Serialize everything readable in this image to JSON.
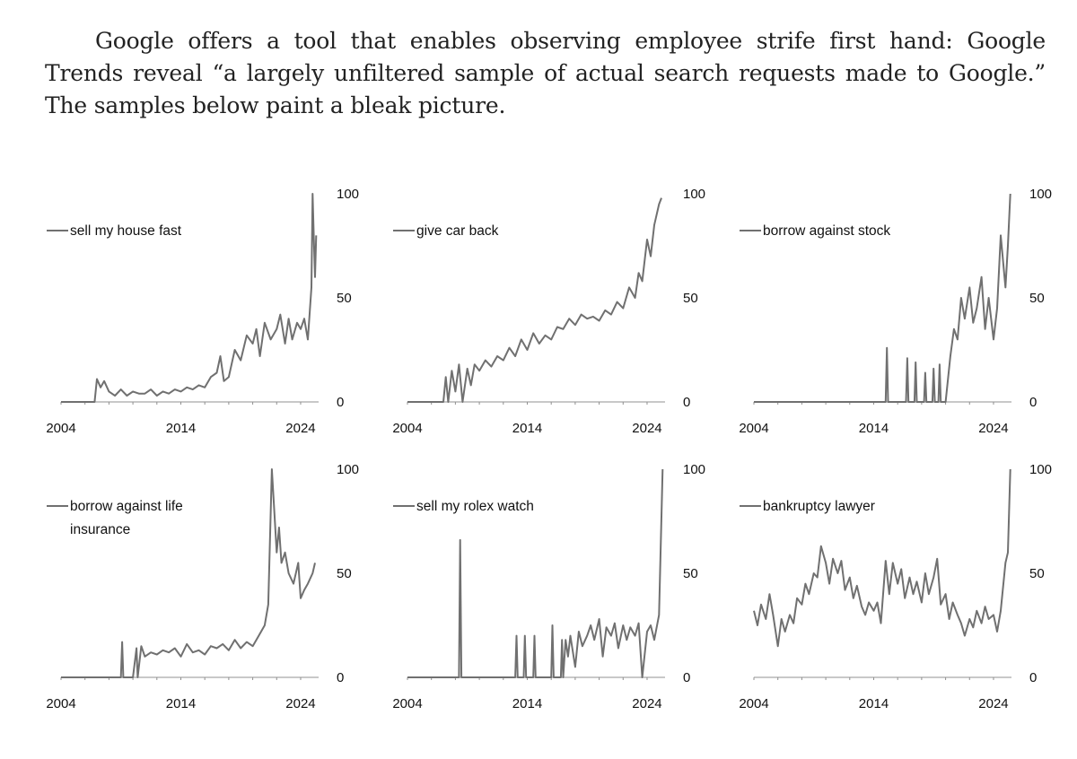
{
  "intro_text": "Google offers a tool that enables observing employee strife first hand: Google Trends reveal “a largely unfiltered sample of actual search requests made to Google.” The samples below paint a bleak picture.",
  "colors": {
    "line": "#707070",
    "axis": "#909090",
    "text": "#111111"
  },
  "chart_data": [
    {
      "type": "line",
      "legend": [
        "sell my house fast"
      ],
      "xticks": [
        "2004",
        "2014",
        "2024"
      ],
      "xlim": [
        2004,
        2025.5
      ],
      "yticks": [
        "100",
        "50",
        "0"
      ],
      "ylim": [
        0,
        100
      ],
      "series": [
        {
          "name": "sell my house fast",
          "x": [
            2004,
            2005,
            2006,
            2006.8,
            2007,
            2007.3,
            2007.6,
            2008,
            2008.5,
            2009,
            2009.5,
            2010,
            2010.5,
            2011,
            2011.5,
            2012,
            2012.5,
            2013,
            2013.5,
            2014,
            2014.5,
            2015,
            2015.5,
            2016,
            2016.5,
            2017,
            2017.3,
            2017.6,
            2018,
            2018.5,
            2019,
            2019.5,
            2020,
            2020.3,
            2020.6,
            2021,
            2021.5,
            2022,
            2022.3,
            2022.7,
            2023,
            2023.3,
            2023.7,
            2024,
            2024.3,
            2024.6,
            2024.9,
            2025.0,
            2025.1,
            2025.2,
            2025.3
          ],
          "y": [
            0,
            0,
            0,
            0,
            11,
            7,
            10,
            5,
            3,
            6,
            3,
            5,
            4,
            4,
            6,
            3,
            5,
            4,
            6,
            5,
            7,
            6,
            8,
            7,
            12,
            14,
            22,
            10,
            12,
            25,
            20,
            32,
            28,
            35,
            22,
            38,
            30,
            35,
            42,
            28,
            40,
            30,
            38,
            35,
            40,
            30,
            55,
            100,
            78,
            60,
            80
          ]
        }
      ]
    },
    {
      "type": "line",
      "legend": [
        "give car back"
      ],
      "xticks": [
        "2004",
        "2014",
        "2024"
      ],
      "xlim": [
        2004,
        2025.5
      ],
      "yticks": [
        "100",
        "50",
        "0"
      ],
      "ylim": [
        0,
        100
      ],
      "series": [
        {
          "name": "give car back",
          "x": [
            2004,
            2005,
            2006,
            2007,
            2007.2,
            2007.4,
            2007.7,
            2008,
            2008.3,
            2008.6,
            2009,
            2009.3,
            2009.6,
            2010,
            2010.5,
            2011,
            2011.5,
            2012,
            2012.5,
            2013,
            2013.5,
            2014,
            2014.5,
            2015,
            2015.5,
            2016,
            2016.5,
            2017,
            2017.5,
            2018,
            2018.5,
            2019,
            2019.5,
            2020,
            2020.5,
            2021,
            2021.5,
            2022,
            2022.5,
            2023,
            2023.3,
            2023.6,
            2024,
            2024.3,
            2024.6,
            2025,
            2025.2
          ],
          "y": [
            0,
            0,
            0,
            0,
            12,
            0,
            15,
            5,
            18,
            0,
            16,
            8,
            18,
            15,
            20,
            17,
            22,
            20,
            26,
            22,
            30,
            25,
            33,
            28,
            32,
            30,
            36,
            35,
            40,
            37,
            42,
            40,
            41,
            39,
            44,
            42,
            48,
            45,
            55,
            50,
            62,
            58,
            78,
            70,
            85,
            95,
            98
          ]
        }
      ]
    },
    {
      "type": "line",
      "legend": [
        "borrow against stock"
      ],
      "xticks": [
        "2004",
        "2014",
        "2024"
      ],
      "xlim": [
        2004,
        2025.5
      ],
      "yticks": [
        "100",
        "50",
        "0"
      ],
      "ylim": [
        0,
        100
      ],
      "series": [
        {
          "name": "borrow against stock",
          "x": [
            2004,
            2008,
            2012,
            2014.5,
            2015,
            2015.1,
            2015.2,
            2016,
            2016.7,
            2016.8,
            2016.9,
            2017.4,
            2017.5,
            2017.6,
            2017.7,
            2018.2,
            2018.3,
            2018.4,
            2018.9,
            2019.0,
            2019.1,
            2019.4,
            2019.5,
            2019.6,
            2020,
            2020.4,
            2020.7,
            2021,
            2021.3,
            2021.6,
            2022,
            2022.3,
            2022.6,
            2023,
            2023.3,
            2023.6,
            2024,
            2024.3,
            2024.6,
            2025,
            2025.2,
            2025.4
          ],
          "y": [
            0,
            0,
            0,
            0,
            0,
            26,
            0,
            0,
            0,
            21,
            0,
            0,
            19,
            0,
            0,
            0,
            14,
            0,
            0,
            16,
            0,
            0,
            18,
            0,
            0,
            22,
            35,
            30,
            50,
            40,
            55,
            38,
            45,
            60,
            35,
            50,
            30,
            45,
            80,
            55,
            75,
            100
          ]
        }
      ]
    },
    {
      "type": "line",
      "legend": [
        "borrow against life",
        "insurance"
      ],
      "xticks": [
        "2004",
        "2014",
        "2024"
      ],
      "xlim": [
        2004,
        2025.5
      ],
      "yticks": [
        "100",
        "50",
        "0"
      ],
      "ylim": [
        0,
        100
      ],
      "series": [
        {
          "name": "borrow against life insurance",
          "x": [
            2004,
            2006,
            2008,
            2009,
            2009.1,
            2009.2,
            2010,
            2010.3,
            2010.4,
            2010.7,
            2011,
            2011.5,
            2012,
            2012.5,
            2013,
            2013.5,
            2014,
            2014.5,
            2015,
            2015.5,
            2016,
            2016.5,
            2017,
            2017.5,
            2018,
            2018.5,
            2019,
            2019.5,
            2020,
            2020.5,
            2021,
            2021.3,
            2021.6,
            2022,
            2022.2,
            2022.4,
            2022.7,
            2023,
            2023.4,
            2023.8,
            2024,
            2024.3,
            2024.6,
            2025,
            2025.2
          ],
          "y": [
            0,
            0,
            0,
            0,
            17,
            0,
            0,
            14,
            0,
            15,
            10,
            12,
            11,
            13,
            12,
            14,
            10,
            16,
            12,
            13,
            11,
            15,
            14,
            16,
            13,
            18,
            14,
            17,
            15,
            20,
            25,
            35,
            100,
            60,
            72,
            55,
            60,
            50,
            45,
            55,
            38,
            42,
            45,
            50,
            55
          ]
        }
      ]
    },
    {
      "type": "line",
      "legend": [
        "sell my rolex watch"
      ],
      "xticks": [
        "2004",
        "2014",
        "2024"
      ],
      "xlim": [
        2004,
        2025.5
      ],
      "yticks": [
        "100",
        "50",
        "0"
      ],
      "ylim": [
        0,
        100
      ],
      "series": [
        {
          "name": "sell my rolex watch",
          "x": [
            2004,
            2006,
            2008,
            2008.3,
            2008.4,
            2008.5,
            2011,
            2013,
            2013.1,
            2013.2,
            2013.7,
            2013.8,
            2013.9,
            2014.5,
            2014.6,
            2014.7,
            2016,
            2016.1,
            2016.2,
            2016.8,
            2016.9,
            2017.0,
            2017.2,
            2017.4,
            2017.6,
            2018,
            2018.3,
            2018.6,
            2019,
            2019.3,
            2019.6,
            2020,
            2020.3,
            2020.6,
            2021,
            2021.3,
            2021.6,
            2022,
            2022.3,
            2022.6,
            2023,
            2023.3,
            2023.6,
            2024,
            2024.3,
            2024.6,
            2025,
            2025.3
          ],
          "y": [
            0,
            0,
            0,
            0,
            66,
            0,
            0,
            0,
            20,
            0,
            0,
            20,
            0,
            0,
            20,
            0,
            0,
            25,
            0,
            0,
            18,
            0,
            18,
            10,
            20,
            5,
            22,
            15,
            20,
            25,
            18,
            28,
            10,
            24,
            20,
            26,
            14,
            25,
            18,
            24,
            20,
            26,
            0,
            22,
            25,
            18,
            30,
            100
          ]
        }
      ]
    },
    {
      "type": "line",
      "legend": [
        "bankruptcy lawyer"
      ],
      "xticks": [
        "2004",
        "2014",
        "2024"
      ],
      "xlim": [
        2004,
        2025.5
      ],
      "yticks": [
        "100",
        "50",
        "0"
      ],
      "ylim": [
        0,
        100
      ],
      "series": [
        {
          "name": "bankruptcy lawyer",
          "x": [
            2004,
            2004.3,
            2004.6,
            2005,
            2005.3,
            2005.6,
            2006,
            2006.3,
            2006.6,
            2007,
            2007.3,
            2007.6,
            2008,
            2008.3,
            2008.6,
            2009,
            2009.3,
            2009.6,
            2010,
            2010.3,
            2010.6,
            2011,
            2011.3,
            2011.6,
            2012,
            2012.3,
            2012.6,
            2013,
            2013.3,
            2013.6,
            2014,
            2014.3,
            2014.6,
            2015,
            2015.3,
            2015.6,
            2016,
            2016.3,
            2016.6,
            2017,
            2017.3,
            2017.6,
            2018,
            2018.3,
            2018.6,
            2019,
            2019.3,
            2019.6,
            2020,
            2020.3,
            2020.6,
            2021,
            2021.3,
            2021.6,
            2022,
            2022.3,
            2022.6,
            2023,
            2023.3,
            2023.6,
            2024,
            2024.3,
            2024.6,
            2025,
            2025.2,
            2025.4
          ],
          "y": [
            32,
            25,
            35,
            28,
            40,
            30,
            15,
            28,
            22,
            30,
            26,
            38,
            35,
            45,
            40,
            50,
            48,
            63,
            55,
            45,
            57,
            50,
            56,
            42,
            48,
            38,
            44,
            34,
            30,
            36,
            32,
            36,
            26,
            56,
            40,
            55,
            45,
            52,
            38,
            48,
            40,
            46,
            36,
            50,
            40,
            48,
            57,
            35,
            40,
            28,
            36,
            30,
            26,
            20,
            28,
            24,
            32,
            26,
            34,
            28,
            30,
            22,
            32,
            55,
            60,
            100
          ]
        }
      ]
    }
  ]
}
